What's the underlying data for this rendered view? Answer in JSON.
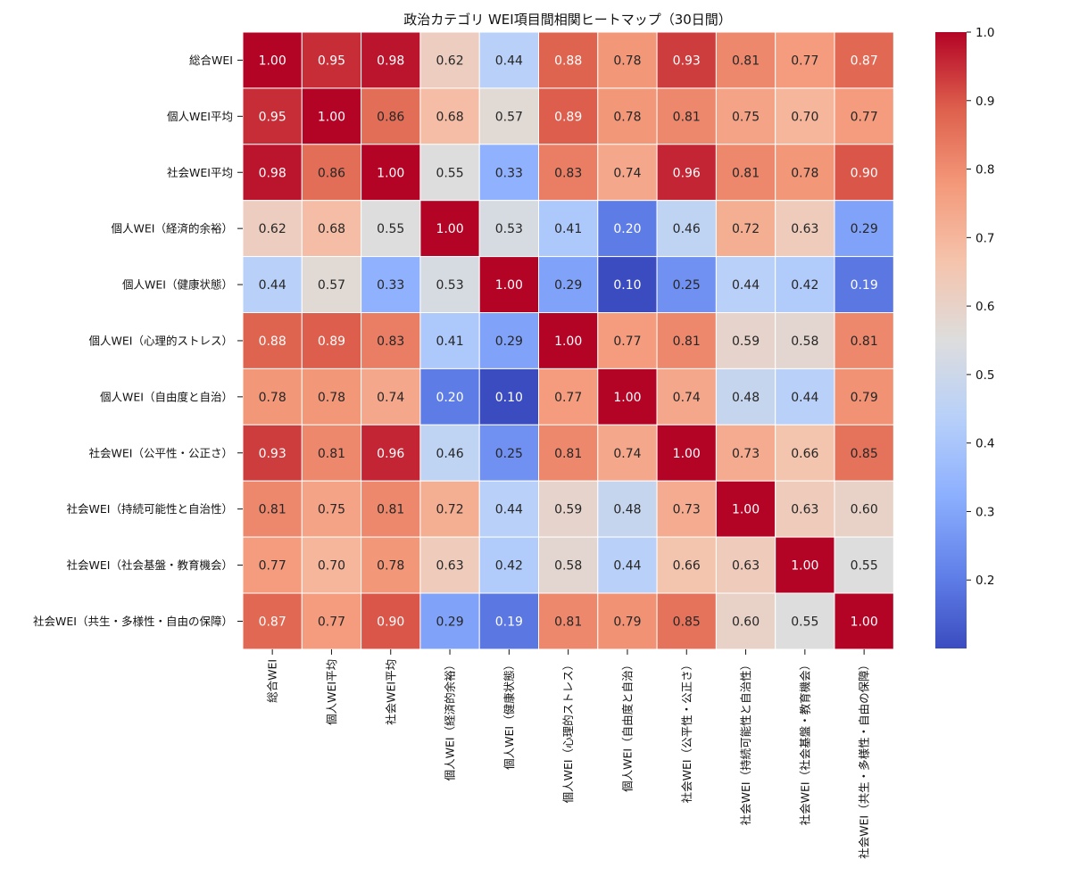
{
  "chart_data": {
    "type": "heatmap",
    "title": "政治カテゴリ WEI項目間相関ヒートマップ（30日間）",
    "labels": [
      "総合WEI",
      "個人WEI平均",
      "社会WEI平均",
      "個人WEI（経済的余裕）",
      "個人WEI（健康状態）",
      "個人WEI（心理的ストレス）",
      "個人WEI（自由度と自治）",
      "社会WEI（公平性・公正さ）",
      "社会WEI（持続可能性と自治性）",
      "社会WEI（社会基盤・教育機会）",
      "社会WEI（共生・多様性・自由の保障）"
    ],
    "matrix": [
      [
        1.0,
        0.95,
        0.98,
        0.62,
        0.44,
        0.88,
        0.78,
        0.93,
        0.81,
        0.77,
        0.87
      ],
      [
        0.95,
        1.0,
        0.86,
        0.68,
        0.57,
        0.89,
        0.78,
        0.81,
        0.75,
        0.7,
        0.77
      ],
      [
        0.98,
        0.86,
        1.0,
        0.55,
        0.33,
        0.83,
        0.74,
        0.96,
        0.81,
        0.78,
        0.9
      ],
      [
        0.62,
        0.68,
        0.55,
        1.0,
        0.53,
        0.41,
        0.2,
        0.46,
        0.72,
        0.63,
        0.29
      ],
      [
        0.44,
        0.57,
        0.33,
        0.53,
        1.0,
        0.29,
        0.1,
        0.25,
        0.44,
        0.42,
        0.19
      ],
      [
        0.88,
        0.89,
        0.83,
        0.41,
        0.29,
        1.0,
        0.77,
        0.81,
        0.59,
        0.58,
        0.81
      ],
      [
        0.78,
        0.78,
        0.74,
        0.2,
        0.1,
        0.77,
        1.0,
        0.74,
        0.48,
        0.44,
        0.79
      ],
      [
        0.93,
        0.81,
        0.96,
        0.46,
        0.25,
        0.81,
        0.74,
        1.0,
        0.73,
        0.66,
        0.85
      ],
      [
        0.81,
        0.75,
        0.81,
        0.72,
        0.44,
        0.59,
        0.48,
        0.73,
        1.0,
        0.63,
        0.6
      ],
      [
        0.77,
        0.7,
        0.78,
        0.63,
        0.42,
        0.58,
        0.44,
        0.66,
        0.63,
        1.0,
        0.55
      ],
      [
        0.87,
        0.77,
        0.9,
        0.29,
        0.19,
        0.81,
        0.79,
        0.85,
        0.6,
        0.55,
        1.0
      ]
    ],
    "colormap": "coolwarm",
    "vmin": 0.1,
    "vmax": 1.0,
    "colorbar_ticks": [
      0.2,
      0.3,
      0.4,
      0.5,
      0.6,
      0.7,
      0.8,
      0.9,
      1.0
    ]
  }
}
